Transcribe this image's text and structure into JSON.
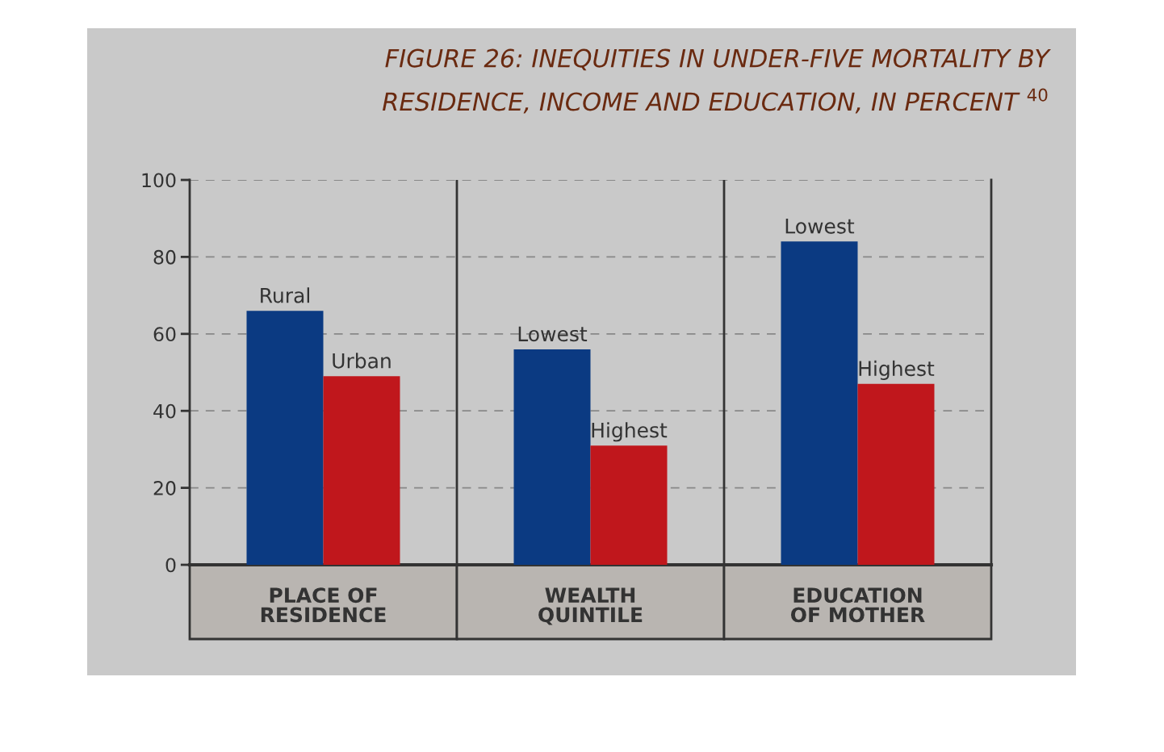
{
  "chart_data": {
    "type": "bar",
    "title": "FIGURE 26: INEQUITIES IN UNDER-FIVE MORTALITY BY\nRESIDENCE, INCOME AND EDUCATION, IN PERCENT $^{40}$",
    "categories": [
      "PLACE OF\nRESIDENCE",
      "WEALTH\nQUINTILE",
      "EDUCATION\nOF MOTHER"
    ],
    "series": [
      {
        "color": "#0b3a82",
        "values": [
          66,
          56,
          84
        ]
      },
      {
        "color": "#c0171c",
        "values": [
          49,
          31,
          47
        ]
      }
    ],
    "annotations": [
      {
        "text": "Rural",
        "x": "PLACE OF\nRESIDENCE",
        "y": 66
      },
      {
        "text": "Urban",
        "x": "PLACE OF\nRESIDENCE",
        "y": 49
      },
      {
        "text": "Lowest",
        "x": "WEALTH\nQUINTILE",
        "y": 56
      },
      {
        "text": "Highest",
        "x": "WEALTH\nQUINTILE",
        "y": 31
      },
      {
        "text": "Lowest",
        "x": "EDUCATION\nOF MOTHER",
        "y": 84
      },
      {
        "text": "Highest",
        "x": "EDUCATION\nOF MOTHER",
        "y": 47
      }
    ],
    "ylim": [
      0,
      100
    ],
    "yticks": [
      0,
      20,
      40,
      60,
      80,
      100
    ],
    "grid": "y",
    "legend": false
  }
}
